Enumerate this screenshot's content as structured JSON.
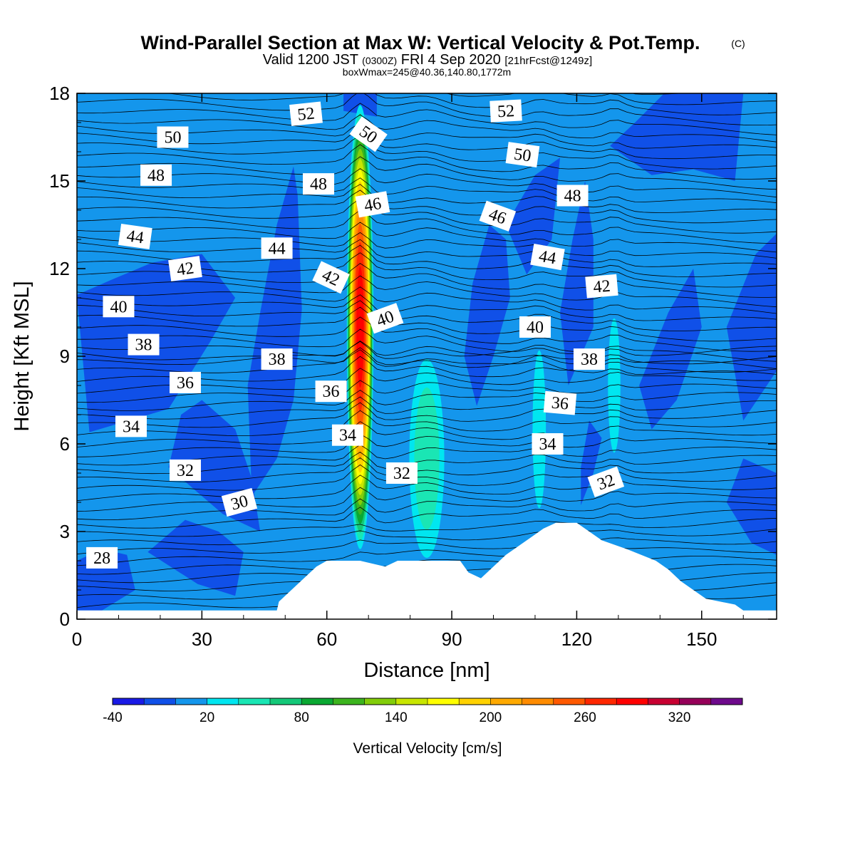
{
  "chart_data": {
    "type": "heatmap",
    "title": "Wind-Parallel Section at Max W: Vertical Velocity & Pot.Temp.",
    "title_mark": "(C)",
    "subtitle": {
      "prefix": "Valid 1200 JST",
      "zulu": "(0300Z)",
      "date": "FRI 4 Sep 2020",
      "forecast": "[21hrFcst@1249z]"
    },
    "box_info": "boxWmax=245@40.36,140.80,1772m",
    "xlabel": "Distance [nm]",
    "ylabel": "Height [Kft MSL]",
    "xlim": [
      0,
      168
    ],
    "ylim": [
      0,
      18
    ],
    "x_ticks": [
      0,
      30,
      60,
      90,
      120,
      150
    ],
    "y_ticks": [
      0,
      3,
      6,
      9,
      12,
      15,
      18
    ],
    "colorbar": {
      "title": "Vertical Velocity [cm/s]",
      "levels": [
        -40,
        -20,
        0,
        20,
        40,
        60,
        80,
        100,
        120,
        140,
        160,
        180,
        200,
        220,
        240,
        260,
        280,
        300,
        320,
        340,
        360
      ],
      "tick_labels": [
        -40,
        20,
        80,
        140,
        200,
        260,
        320
      ],
      "colors": [
        "#1a1ae6",
        "#1050e8",
        "#1496ec",
        "#00e6f0",
        "#1ae6b4",
        "#14c878",
        "#0aa832",
        "#3cb41e",
        "#82cd0a",
        "#c8e600",
        "#ffff00",
        "#ffd200",
        "#ffaa00",
        "#ff8c00",
        "#ff5a00",
        "#ff2800",
        "#ff0000",
        "#c80032",
        "#96005a",
        "#6e0a8c"
      ]
    },
    "updraft_cells": [
      {
        "x": 68,
        "z": 10,
        "peak": 300
      },
      {
        "x": 84,
        "z": 5.5,
        "peak": 60
      },
      {
        "x": 111,
        "z": 6.5,
        "peak": 30
      },
      {
        "x": 129,
        "z": 8,
        "peak": 40
      }
    ],
    "terrain": [
      {
        "x": 0,
        "z": 0.3
      },
      {
        "x": 48,
        "z": 0.3
      },
      {
        "x": 48.5,
        "z": 0.6
      },
      {
        "x": 51.5,
        "z": 1.0
      },
      {
        "x": 54.5,
        "z": 1.4
      },
      {
        "x": 57.5,
        "z": 1.8
      },
      {
        "x": 60,
        "z": 2.0
      },
      {
        "x": 68,
        "z": 2.0
      },
      {
        "x": 74,
        "z": 1.8
      },
      {
        "x": 77,
        "z": 2.0
      },
      {
        "x": 92,
        "z": 2.0
      },
      {
        "x": 94,
        "z": 1.6
      },
      {
        "x": 97,
        "z": 1.4
      },
      {
        "x": 100,
        "z": 1.8
      },
      {
        "x": 103,
        "z": 2.2
      },
      {
        "x": 106,
        "z": 2.5
      },
      {
        "x": 109,
        "z": 2.8
      },
      {
        "x": 112,
        "z": 3.1
      },
      {
        "x": 115,
        "z": 3.3
      },
      {
        "x": 120,
        "z": 3.3
      },
      {
        "x": 123,
        "z": 3.0
      },
      {
        "x": 126,
        "z": 2.7
      },
      {
        "x": 132,
        "z": 2.4
      },
      {
        "x": 139,
        "z": 2.0
      },
      {
        "x": 142,
        "z": 1.7
      },
      {
        "x": 145,
        "z": 1.3
      },
      {
        "x": 148,
        "z": 1.0
      },
      {
        "x": 151,
        "z": 0.7
      },
      {
        "x": 158,
        "z": 0.5
      },
      {
        "x": 160,
        "z": 0.3
      },
      {
        "x": 168,
        "z": 0.3
      }
    ],
    "theta_labels": [
      {
        "value": "52",
        "x": 55,
        "z": 17.3,
        "angle": -6
      },
      {
        "value": "50",
        "x": 23,
        "z": 16.5,
        "angle": 0
      },
      {
        "value": "50",
        "x": 70,
        "z": 16.6,
        "angle": 35
      },
      {
        "value": "52",
        "x": 103,
        "z": 17.4,
        "angle": -3
      },
      {
        "value": "48",
        "x": 19,
        "z": 15.2,
        "angle": 0
      },
      {
        "value": "48",
        "x": 58,
        "z": 14.9,
        "angle": 0
      },
      {
        "value": "46",
        "x": 71,
        "z": 14.2,
        "angle": -10
      },
      {
        "value": "50",
        "x": 107,
        "z": 15.9,
        "angle": 8
      },
      {
        "value": "48",
        "x": 119,
        "z": 14.5,
        "angle": 0
      },
      {
        "value": "46",
        "x": 101,
        "z": 13.8,
        "angle": 20
      },
      {
        "value": "44",
        "x": 14,
        "z": 13.1,
        "angle": 8
      },
      {
        "value": "44",
        "x": 48,
        "z": 12.7,
        "angle": 0
      },
      {
        "value": "44",
        "x": 113,
        "z": 12.4,
        "angle": 10
      },
      {
        "value": "42",
        "x": 26,
        "z": 12.0,
        "angle": -8
      },
      {
        "value": "42",
        "x": 61,
        "z": 11.7,
        "angle": 25
      },
      {
        "value": "42",
        "x": 126,
        "z": 11.4,
        "angle": -5
      },
      {
        "value": "40",
        "x": 10,
        "z": 10.7,
        "angle": 0
      },
      {
        "value": "40",
        "x": 74,
        "z": 10.3,
        "angle": -20
      },
      {
        "value": "40",
        "x": 110,
        "z": 10.0,
        "angle": 0
      },
      {
        "value": "38",
        "x": 16,
        "z": 9.4,
        "angle": 0
      },
      {
        "value": "38",
        "x": 48,
        "z": 8.9,
        "angle": 0
      },
      {
        "value": "38",
        "x": 123,
        "z": 8.9,
        "angle": 0
      },
      {
        "value": "36",
        "x": 26,
        "z": 8.1,
        "angle": 0
      },
      {
        "value": "36",
        "x": 61,
        "z": 7.8,
        "angle": 0
      },
      {
        "value": "36",
        "x": 116,
        "z": 7.4,
        "angle": 5
      },
      {
        "value": "34",
        "x": 13,
        "z": 6.6,
        "angle": 0
      },
      {
        "value": "34",
        "x": 65,
        "z": 6.3,
        "angle": 0
      },
      {
        "value": "34",
        "x": 113,
        "z": 6.0,
        "angle": 0
      },
      {
        "value": "32",
        "x": 26,
        "z": 5.1,
        "angle": 0
      },
      {
        "value": "32",
        "x": 78,
        "z": 5.0,
        "angle": 0
      },
      {
        "value": "32",
        "x": 127,
        "z": 4.7,
        "angle": -20
      },
      {
        "value": "30",
        "x": 39,
        "z": 4.0,
        "angle": -15
      },
      {
        "value": "28",
        "x": 6,
        "z": 2.1,
        "angle": 0
      }
    ]
  }
}
